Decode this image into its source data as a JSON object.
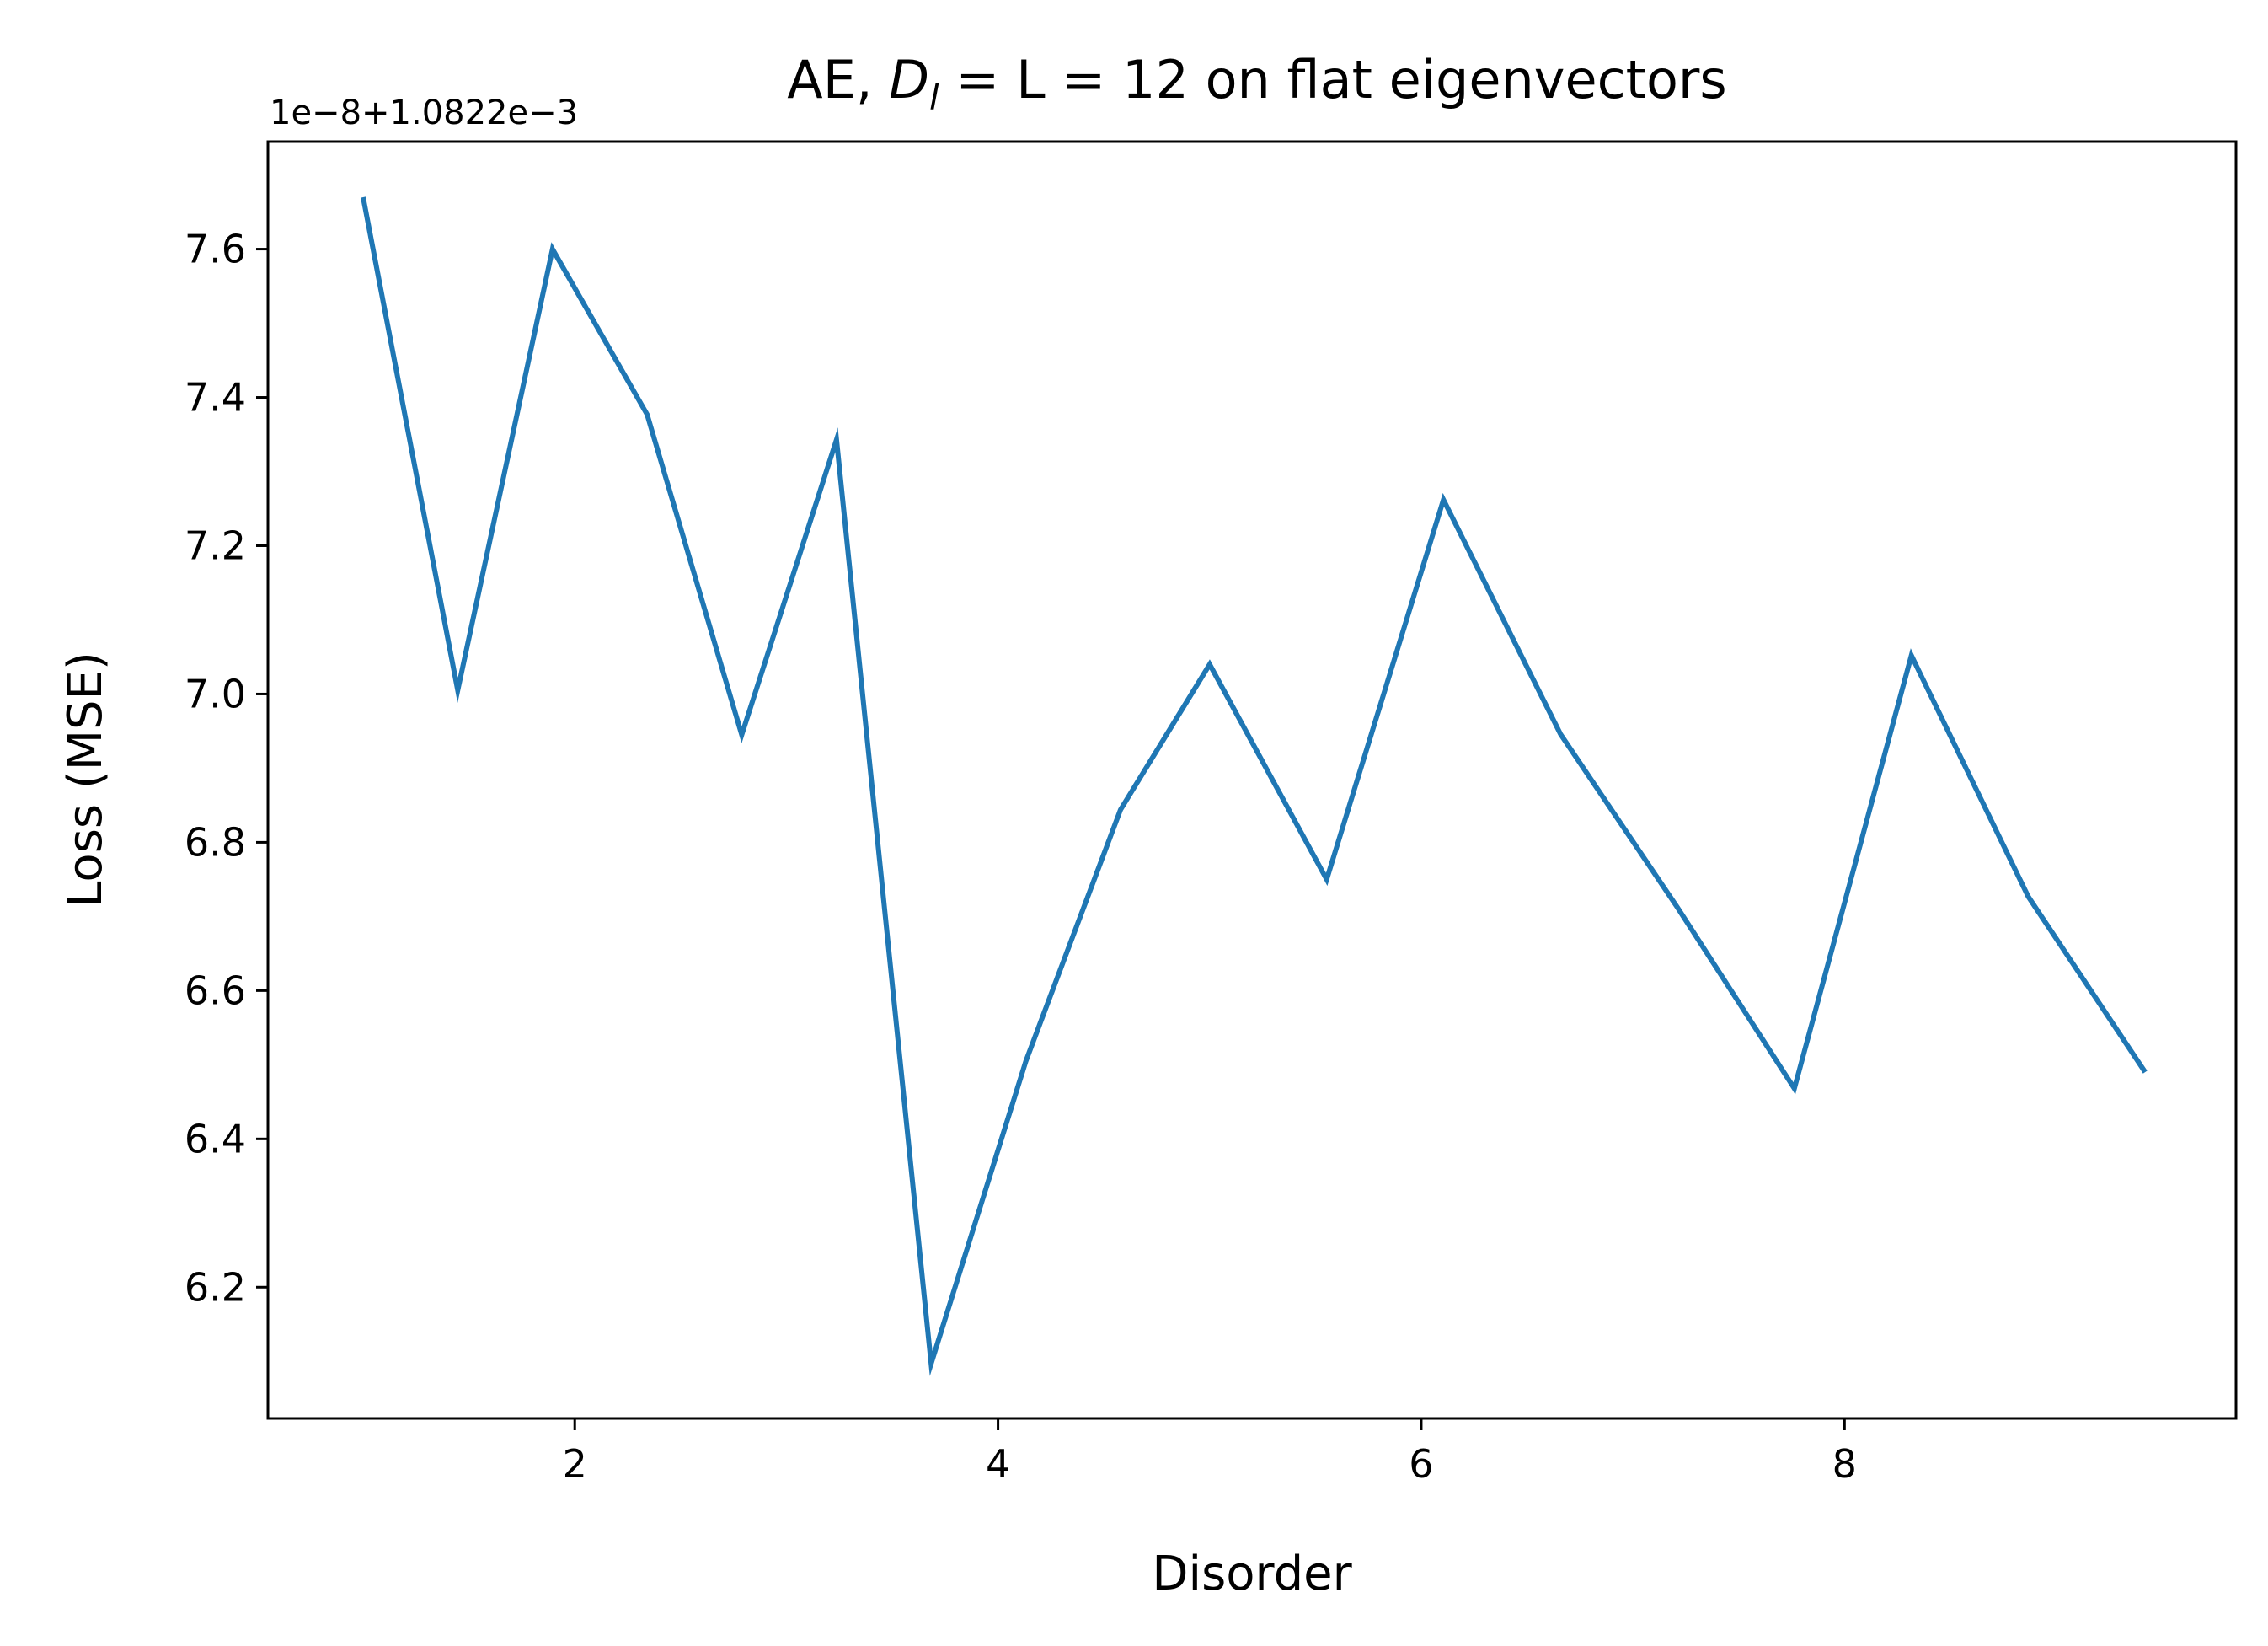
{
  "chart_data": {
    "type": "line",
    "title_prefix": "AE, ",
    "title_math": "D",
    "title_sub": "l",
    "title_suffix": " = L = 12 on flat eigenvectors",
    "offset_text": "1e−8+1.0822e−3",
    "xlabel": "Disorder",
    "ylabel": "Loss (MSE)",
    "xlim": [
      0.55,
      9.85
    ],
    "ylim": [
      6.023,
      7.745
    ],
    "xticks": [
      2,
      4,
      6,
      8
    ],
    "xtick_labels": [
      "2",
      "4",
      "6",
      "8"
    ],
    "yticks": [
      6.2,
      6.4,
      6.6,
      6.8,
      7.0,
      7.2,
      7.4,
      7.6
    ],
    "ytick_labels": [
      "6.2",
      "6.4",
      "6.6",
      "6.8",
      "7.0",
      "7.2",
      "7.4",
      "7.6"
    ],
    "grid": false,
    "series": [
      {
        "color": "#1f77b4",
        "x": [
          1.0,
          1.447,
          1.895,
          2.342,
          2.789,
          3.237,
          3.684,
          4.132,
          4.579,
          5.0,
          5.553,
          6.105,
          6.658,
          7.211,
          7.763,
          8.316,
          8.868,
          9.421
        ],
        "y": [
          7.67,
          7.005,
          7.6,
          7.377,
          6.945,
          7.343,
          6.097,
          6.505,
          6.844,
          7.04,
          6.75,
          7.262,
          6.946,
          6.712,
          6.468,
          7.052,
          6.727,
          6.49
        ]
      }
    ]
  }
}
